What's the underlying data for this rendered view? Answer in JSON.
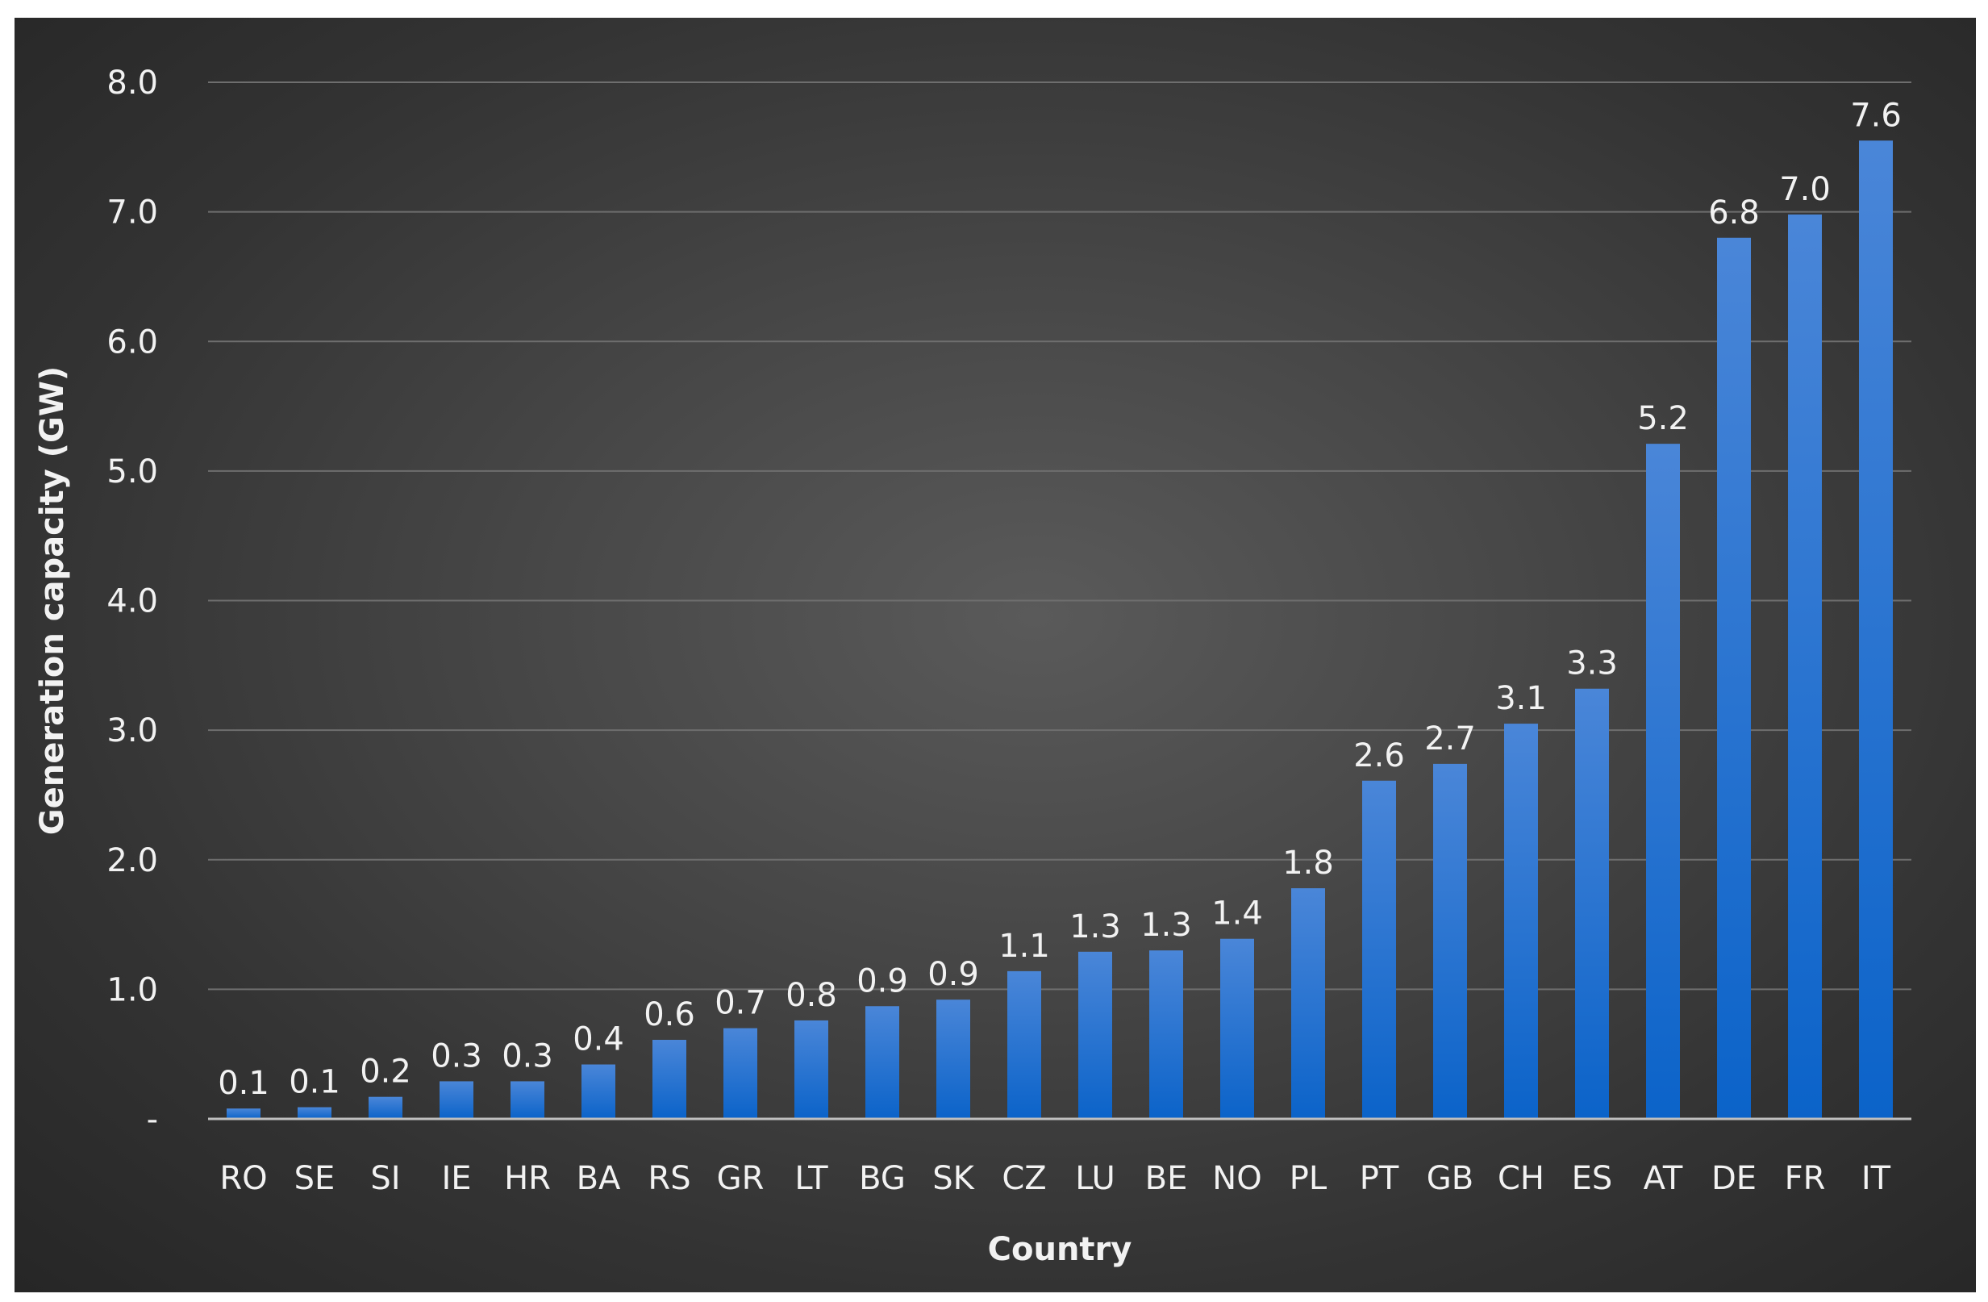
{
  "chart_data": {
    "type": "bar",
    "title": "",
    "xlabel": "Country",
    "ylabel": "Generation capacity (GW)",
    "ylim": [
      0,
      8
    ],
    "yticks": [
      0,
      1,
      2,
      3,
      4,
      5,
      6,
      7,
      8
    ],
    "ytick_labels": [
      "-",
      "1.0",
      "2.0",
      "3.0",
      "4.0",
      "5.0",
      "6.0",
      "7.0",
      "8.0"
    ],
    "grid": true,
    "legend": "none",
    "categories": [
      "RO",
      "SE",
      "SI",
      "IE",
      "HR",
      "BA",
      "RS",
      "GR",
      "LT",
      "BG",
      "SK",
      "CZ",
      "LU",
      "BE",
      "NO",
      "PL",
      "PT",
      "GB",
      "CH",
      "ES",
      "AT",
      "DE",
      "FR",
      "IT"
    ],
    "values": [
      0.08,
      0.09,
      0.17,
      0.29,
      0.29,
      0.42,
      0.61,
      0.7,
      0.76,
      0.87,
      0.92,
      1.14,
      1.29,
      1.3,
      1.39,
      1.78,
      2.61,
      2.74,
      3.05,
      3.32,
      5.21,
      6.8,
      6.98,
      7.55
    ],
    "data_labels": [
      "0.1",
      "0.1",
      "0.2",
      "0.3",
      "0.3",
      "0.4",
      "0.6",
      "0.7",
      "0.8",
      "0.9",
      "0.9",
      "1.1",
      "1.3",
      "1.3",
      "1.4",
      "1.8",
      "2.6",
      "2.7",
      "3.1",
      "3.3",
      "5.2",
      "6.8",
      "7.0",
      "7.6"
    ],
    "colors": {
      "bar_top": "#4a86d8",
      "bar_bottom": "#0b63c9",
      "text": "#f2f2f2",
      "grid": "#6e6e6e"
    }
  }
}
